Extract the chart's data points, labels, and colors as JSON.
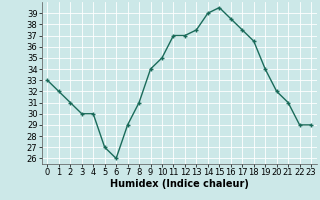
{
  "x": [
    0,
    1,
    2,
    3,
    4,
    5,
    6,
    7,
    8,
    9,
    10,
    11,
    12,
    13,
    14,
    15,
    16,
    17,
    18,
    19,
    20,
    21,
    22,
    23
  ],
  "y": [
    33,
    32,
    31,
    30,
    30,
    27,
    26,
    29,
    31,
    34,
    35,
    37,
    37,
    37.5,
    39,
    39.5,
    38.5,
    37.5,
    36.5,
    34,
    32,
    31,
    29,
    29
  ],
  "line_color": "#1a6b5a",
  "marker": "+",
  "marker_size": 3.5,
  "bg_color": "#cce8e8",
  "grid_color": "#ffffff",
  "xlabel": "Humidex (Indice chaleur)",
  "xlim": [
    -0.5,
    23.5
  ],
  "ylim": [
    25.5,
    40
  ],
  "yticks": [
    26,
    27,
    28,
    29,
    30,
    31,
    32,
    33,
    34,
    35,
    36,
    37,
    38,
    39
  ],
  "xticks": [
    0,
    1,
    2,
    3,
    4,
    5,
    6,
    7,
    8,
    9,
    10,
    11,
    12,
    13,
    14,
    15,
    16,
    17,
    18,
    19,
    20,
    21,
    22,
    23
  ],
  "xlabel_fontsize": 7,
  "tick_fontsize": 6,
  "line_width": 1.0
}
